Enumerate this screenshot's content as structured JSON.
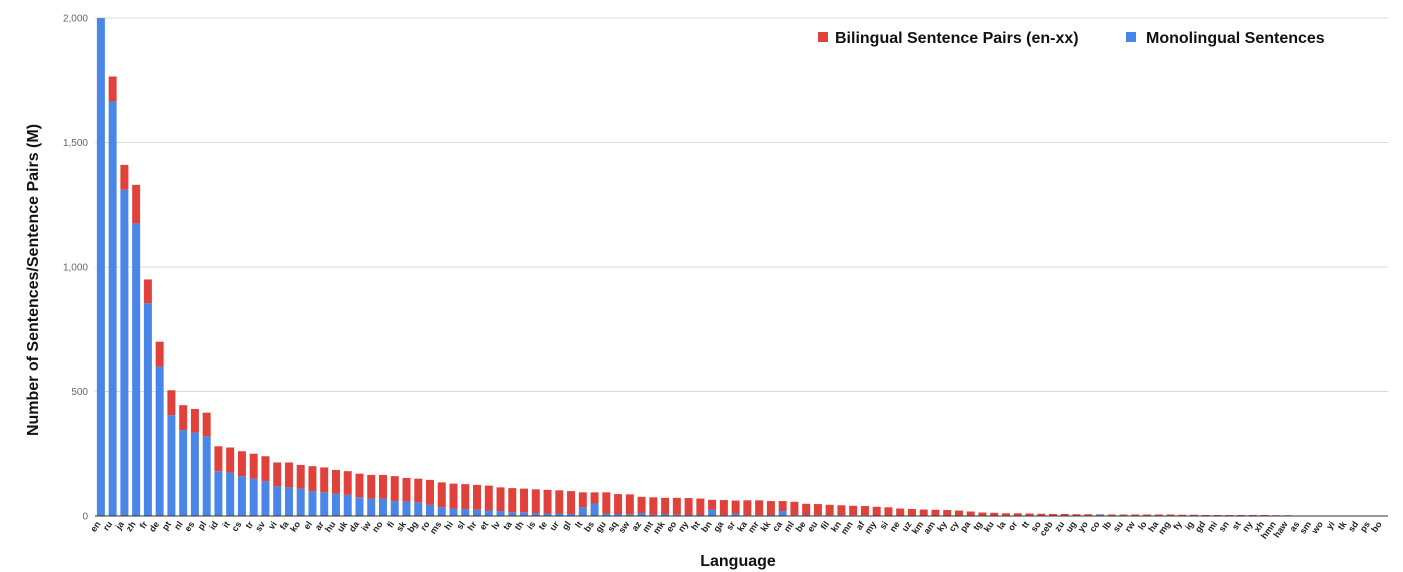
{
  "chart_data": {
    "type": "bar",
    "stacked": true,
    "xlabel": "Language",
    "ylabel": "Number of Sentences/Sentence Pairs (M)",
    "ylim": [
      0,
      2000
    ],
    "yticks": [
      0,
      500,
      1000,
      1500,
      2000
    ],
    "ytick_labels": [
      "0",
      "500",
      "1,000",
      "1,500",
      "2,000"
    ],
    "grid": true,
    "legend_position": "top-right",
    "categories": [
      "en",
      "ru",
      "ja",
      "zh",
      "fr",
      "de",
      "pt",
      "nl",
      "es",
      "pl",
      "id",
      "it",
      "cs",
      "tr",
      "sv",
      "vi",
      "fa",
      "ko",
      "el",
      "ar",
      "hu",
      "uk",
      "da",
      "iw",
      "no",
      "fi",
      "sk",
      "bg",
      "ro",
      "ms",
      "hi",
      "sl",
      "hr",
      "et",
      "lv",
      "ta",
      "th",
      "is",
      "te",
      "ur",
      "gl",
      "lt",
      "bs",
      "gu",
      "sq",
      "sw",
      "az",
      "mt",
      "mk",
      "eo",
      "ny",
      "ht",
      "bn",
      "ga",
      "sr",
      "ka",
      "mr",
      "kk",
      "ca",
      "ml",
      "be",
      "eu",
      "fil",
      "kn",
      "mn",
      "af",
      "my",
      "si",
      "ne",
      "uz",
      "km",
      "am",
      "ky",
      "cy",
      "pa",
      "tg",
      "ku",
      "la",
      "or",
      "tt",
      "so",
      "ceb",
      "zu",
      "ug",
      "yo",
      "co",
      "lb",
      "su",
      "rw",
      "lo",
      "ha",
      "mg",
      "fy",
      "ig",
      "gd",
      "mi",
      "sn",
      "st",
      "ny",
      "xh",
      "hmn",
      "haw",
      "as",
      "sm",
      "wo",
      "yi",
      "tk",
      "sd",
      "ps",
      "bo"
    ],
    "series": [
      {
        "name": "Monolingual Sentences",
        "color": "#4a86e8",
        "values": [
          2000,
          1665,
          1310,
          1175,
          855,
          600,
          405,
          345,
          335,
          320,
          180,
          175,
          160,
          150,
          140,
          120,
          115,
          110,
          100,
          95,
          90,
          85,
          75,
          70,
          70,
          60,
          58,
          55,
          45,
          35,
          30,
          28,
          25,
          22,
          20,
          15,
          15,
          12,
          10,
          10,
          8,
          35,
          50,
          10,
          8,
          7,
          12,
          5,
          8,
          5,
          4,
          4,
          25,
          4,
          10,
          3,
          3,
          4,
          20,
          3,
          4,
          3,
          3,
          3,
          3,
          3,
          2,
          2,
          2,
          2,
          2,
          2,
          2,
          2,
          2,
          2,
          1,
          2,
          1,
          1,
          1,
          1,
          1,
          1,
          1,
          5,
          1,
          1,
          1,
          1,
          1,
          1,
          1,
          1,
          1,
          1,
          1,
          1,
          1,
          1,
          1,
          1,
          1,
          1,
          1,
          1,
          1,
          1,
          1,
          1
        ]
      },
      {
        "name": "Bilingual Sentence Pairs (en-xx)",
        "color": "#e0413a",
        "values": [
          0,
          100,
          100,
          155,
          95,
          100,
          100,
          100,
          95,
          95,
          100,
          100,
          100,
          100,
          100,
          95,
          100,
          95,
          100,
          100,
          95,
          95,
          95,
          95,
          95,
          100,
          95,
          95,
          100,
          100,
          100,
          100,
          100,
          100,
          95,
          97,
          95,
          95,
          95,
          93,
          92,
          60,
          45,
          85,
          80,
          80,
          65,
          70,
          65,
          68,
          68,
          66,
          40,
          60,
          52,
          60,
          60,
          56,
          40,
          54,
          45,
          45,
          42,
          40,
          38,
          37,
          35,
          33,
          28,
          26,
          24,
          23,
          22,
          20,
          16,
          12,
          12,
          9,
          10,
          9,
          8,
          7,
          7,
          6,
          6,
          2,
          5,
          5,
          5,
          5,
          5,
          5,
          4,
          4,
          3,
          3,
          3,
          3,
          3,
          3,
          2,
          2,
          1,
          1,
          1,
          1,
          1,
          1,
          1,
          1
        ]
      }
    ]
  }
}
